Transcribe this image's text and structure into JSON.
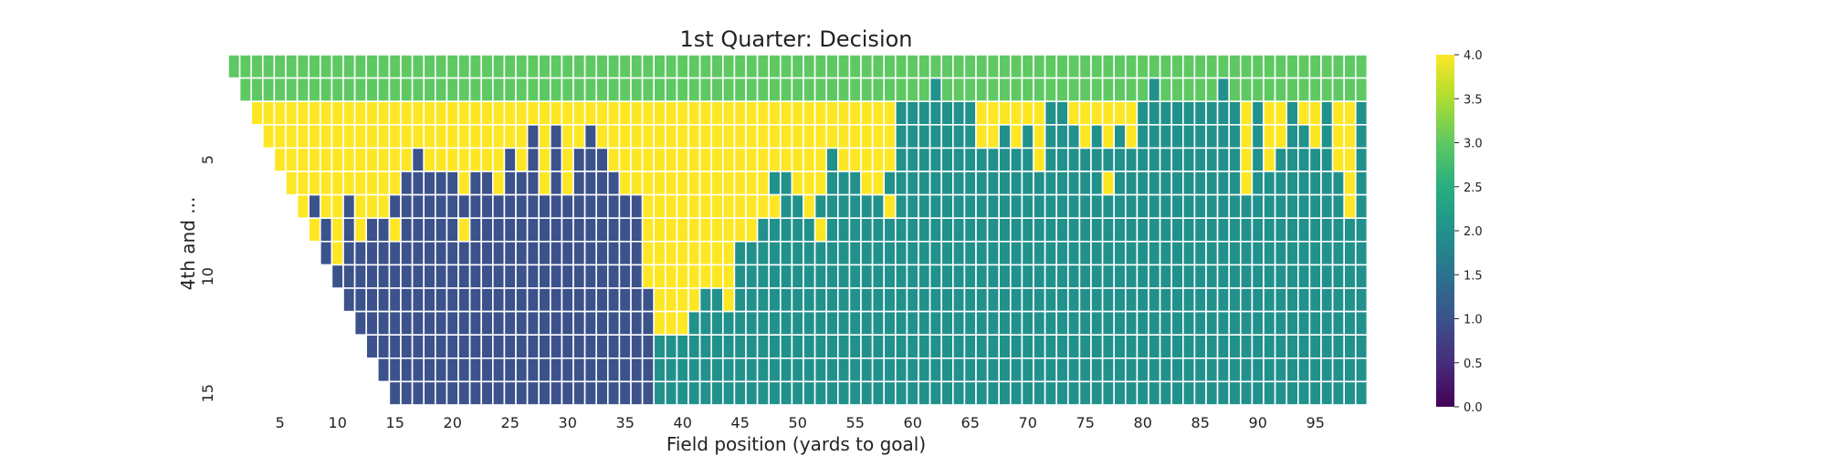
{
  "chart_data": {
    "type": "heatmap",
    "title": "1st Quarter: Decision",
    "xlabel": "Field position (yards to goal)",
    "ylabel": "4th and ...",
    "x_range": [
      1,
      99
    ],
    "y_range": [
      1,
      15
    ],
    "x_ticks": [
      "5",
      "10",
      "15",
      "20",
      "25",
      "30",
      "35",
      "40",
      "45",
      "50",
      "55",
      "60",
      "65",
      "70",
      "75",
      "80",
      "85",
      "90",
      "95"
    ],
    "y_ticks": [
      "5",
      "10",
      "15"
    ],
    "colorbar": {
      "colormap": "viridis",
      "vmin": 0.0,
      "vmax": 4.0,
      "ticks": [
        "0.0",
        "0.5",
        "1.0",
        "1.5",
        "2.0",
        "2.5",
        "3.0",
        "3.5",
        "4.0"
      ]
    },
    "levels": {
      "1": "#3b528b",
      "2": "#21918c",
      "3": "#5ec962",
      "4": "#fde725"
    },
    "grid_lines": "white",
    "rows": [
      {
        "yards_to_go": 1,
        "runs": [
          [
            1,
            99,
            3
          ]
        ]
      },
      {
        "yards_to_go": 2,
        "runs": [
          [
            2,
            61,
            3
          ],
          [
            62,
            62,
            2
          ],
          [
            63,
            80,
            3
          ],
          [
            81,
            81,
            2
          ],
          [
            82,
            86,
            3
          ],
          [
            87,
            87,
            2
          ],
          [
            88,
            99,
            3
          ]
        ]
      },
      {
        "yards_to_go": 3,
        "runs": [
          [
            3,
            58,
            4
          ],
          [
            59,
            65,
            2
          ],
          [
            66,
            71,
            4
          ],
          [
            72,
            73,
            2
          ],
          [
            74,
            79,
            4
          ],
          [
            80,
            88,
            2
          ],
          [
            89,
            89,
            4
          ],
          [
            90,
            90,
            2
          ],
          [
            91,
            92,
            4
          ],
          [
            93,
            93,
            2
          ],
          [
            94,
            95,
            4
          ],
          [
            96,
            96,
            2
          ],
          [
            97,
            98,
            4
          ],
          [
            99,
            99,
            2
          ]
        ]
      },
      {
        "yards_to_go": 4,
        "runs": [
          [
            4,
            26,
            4
          ],
          [
            27,
            27,
            1
          ],
          [
            28,
            28,
            4
          ],
          [
            29,
            29,
            1
          ],
          [
            30,
            31,
            4
          ],
          [
            32,
            32,
            1
          ],
          [
            33,
            58,
            4
          ],
          [
            59,
            65,
            2
          ],
          [
            66,
            67,
            4
          ],
          [
            68,
            68,
            2
          ],
          [
            69,
            69,
            4
          ],
          [
            70,
            70,
            2
          ],
          [
            71,
            71,
            4
          ],
          [
            72,
            74,
            2
          ],
          [
            75,
            75,
            4
          ],
          [
            76,
            76,
            2
          ],
          [
            77,
            77,
            4
          ],
          [
            78,
            78,
            2
          ],
          [
            79,
            79,
            4
          ],
          [
            80,
            88,
            2
          ],
          [
            89,
            89,
            4
          ],
          [
            90,
            90,
            2
          ],
          [
            91,
            92,
            4
          ],
          [
            93,
            94,
            2
          ],
          [
            95,
            95,
            4
          ],
          [
            96,
            96,
            2
          ],
          [
            97,
            98,
            4
          ],
          [
            99,
            99,
            2
          ]
        ]
      },
      {
        "yards_to_go": 5,
        "runs": [
          [
            5,
            16,
            4
          ],
          [
            17,
            17,
            1
          ],
          [
            18,
            24,
            4
          ],
          [
            25,
            25,
            1
          ],
          [
            26,
            26,
            4
          ],
          [
            27,
            27,
            1
          ],
          [
            28,
            28,
            4
          ],
          [
            29,
            29,
            1
          ],
          [
            30,
            30,
            4
          ],
          [
            31,
            33,
            1
          ],
          [
            34,
            52,
            4
          ],
          [
            53,
            53,
            2
          ],
          [
            54,
            58,
            4
          ],
          [
            59,
            70,
            2
          ],
          [
            71,
            71,
            4
          ],
          [
            72,
            88,
            2
          ],
          [
            89,
            89,
            4
          ],
          [
            90,
            90,
            2
          ],
          [
            91,
            91,
            4
          ],
          [
            92,
            96,
            2
          ],
          [
            97,
            98,
            4
          ],
          [
            99,
            99,
            2
          ]
        ]
      },
      {
        "yards_to_go": 6,
        "runs": [
          [
            6,
            15,
            4
          ],
          [
            16,
            20,
            1
          ],
          [
            21,
            21,
            4
          ],
          [
            22,
            23,
            1
          ],
          [
            24,
            24,
            4
          ],
          [
            25,
            27,
            1
          ],
          [
            28,
            28,
            4
          ],
          [
            29,
            29,
            1
          ],
          [
            30,
            30,
            4
          ],
          [
            31,
            34,
            1
          ],
          [
            35,
            47,
            4
          ],
          [
            48,
            49,
            2
          ],
          [
            50,
            52,
            4
          ],
          [
            53,
            55,
            2
          ],
          [
            56,
            57,
            4
          ],
          [
            58,
            76,
            2
          ],
          [
            77,
            77,
            4
          ],
          [
            78,
            88,
            2
          ],
          [
            89,
            89,
            4
          ],
          [
            90,
            97,
            2
          ],
          [
            98,
            98,
            4
          ],
          [
            99,
            99,
            2
          ]
        ]
      },
      {
        "yards_to_go": 7,
        "runs": [
          [
            7,
            7,
            4
          ],
          [
            8,
            8,
            1
          ],
          [
            9,
            10,
            4
          ],
          [
            11,
            11,
            1
          ],
          [
            12,
            14,
            4
          ],
          [
            15,
            36,
            1
          ],
          [
            37,
            48,
            4
          ],
          [
            49,
            50,
            2
          ],
          [
            51,
            51,
            4
          ],
          [
            52,
            57,
            2
          ],
          [
            58,
            58,
            4
          ],
          [
            59,
            97,
            2
          ],
          [
            98,
            98,
            4
          ],
          [
            99,
            99,
            2
          ]
        ]
      },
      {
        "yards_to_go": 8,
        "runs": [
          [
            8,
            8,
            4
          ],
          [
            9,
            9,
            1
          ],
          [
            10,
            10,
            4
          ],
          [
            11,
            11,
            1
          ],
          [
            12,
            12,
            4
          ],
          [
            13,
            14,
            1
          ],
          [
            15,
            15,
            4
          ],
          [
            16,
            20,
            1
          ],
          [
            21,
            21,
            4
          ],
          [
            22,
            36,
            1
          ],
          [
            37,
            46,
            4
          ],
          [
            47,
            51,
            2
          ],
          [
            52,
            52,
            4
          ],
          [
            53,
            99,
            2
          ]
        ]
      },
      {
        "yards_to_go": 9,
        "runs": [
          [
            9,
            9,
            1
          ],
          [
            10,
            10,
            4
          ],
          [
            11,
            36,
            1
          ],
          [
            37,
            44,
            4
          ],
          [
            45,
            99,
            2
          ]
        ]
      },
      {
        "yards_to_go": 10,
        "runs": [
          [
            10,
            36,
            1
          ],
          [
            37,
            44,
            4
          ],
          [
            45,
            99,
            2
          ]
        ]
      },
      {
        "yards_to_go": 11,
        "runs": [
          [
            11,
            37,
            1
          ],
          [
            38,
            41,
            4
          ],
          [
            42,
            43,
            2
          ],
          [
            44,
            44,
            4
          ],
          [
            45,
            99,
            2
          ]
        ]
      },
      {
        "yards_to_go": 12,
        "runs": [
          [
            12,
            37,
            1
          ],
          [
            38,
            40,
            4
          ],
          [
            41,
            99,
            2
          ]
        ]
      },
      {
        "yards_to_go": 13,
        "runs": [
          [
            13,
            37,
            1
          ],
          [
            38,
            99,
            2
          ]
        ]
      },
      {
        "yards_to_go": 14,
        "runs": [
          [
            14,
            37,
            1
          ],
          [
            38,
            99,
            2
          ]
        ]
      },
      {
        "yards_to_go": 15,
        "runs": [
          [
            15,
            37,
            1
          ],
          [
            38,
            99,
            2
          ]
        ]
      }
    ]
  }
}
